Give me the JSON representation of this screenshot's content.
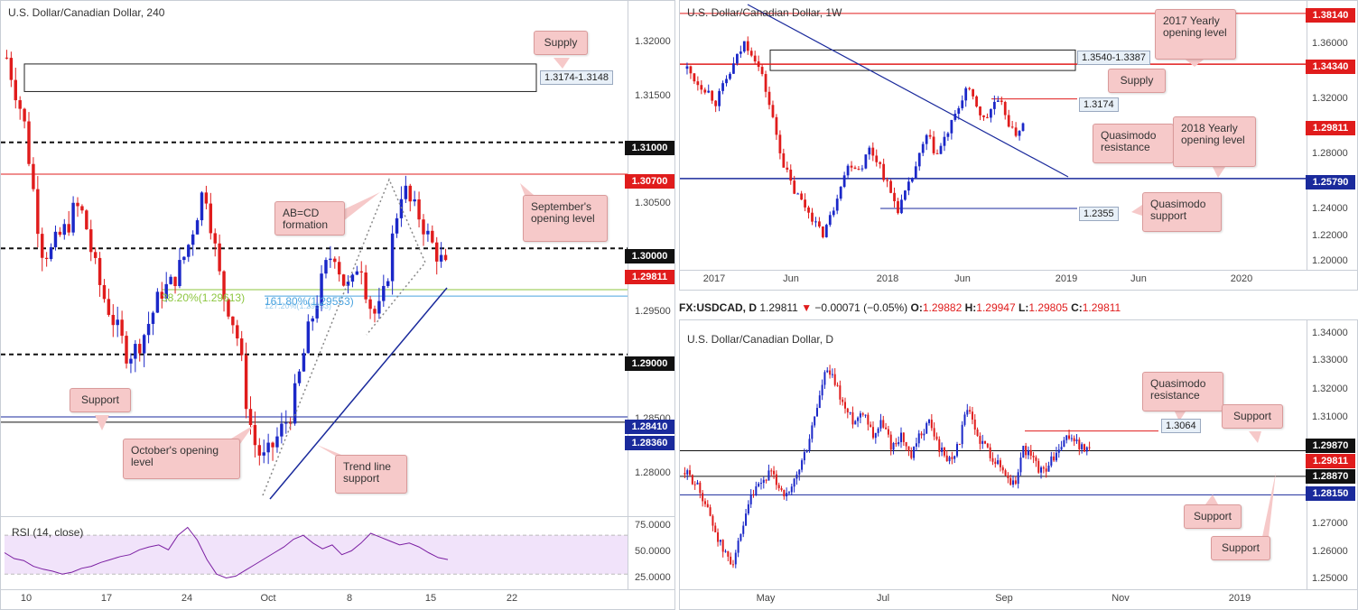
{
  "colors": {
    "up": "#1b28c8",
    "down": "#e01c1c",
    "level_red": "#e01c1c",
    "level_blue": "#1a2a9c",
    "black": "#111111",
    "fib_green": "#8cc63f",
    "fib_blue": "#4aa3df",
    "rsi_line": "#7b1fa2",
    "rsi_band": "#f1e3fa",
    "callout_bg": "#f6c9c9"
  },
  "h4": {
    "title": "U.S. Dollar/Canadian Dollar, 240",
    "price_ticks": [
      "1.32000",
      "1.31500",
      "1.31000",
      "1.30700",
      "1.30500",
      "1.30000",
      "1.29811",
      "1.29500",
      "1.29000",
      "1.28500",
      "1.28410",
      "1.28360",
      "1.28000"
    ],
    "date_ticks": [
      "10",
      "17",
      "24",
      "Oct",
      "8",
      "15",
      "22"
    ],
    "levels": {
      "l13100": "1.31000",
      "l13070": "1.30700",
      "l13000": "1.30000",
      "last": "1.29811",
      "l12900": "1.29000",
      "l12841": "1.28410",
      "l12836": "1.28360"
    },
    "supply_box_label": "1.3174-1.3148",
    "fib_382": "38.20%(1.29613)",
    "fib_1618": "161.80%(1.29553)",
    "fib_1272": "127.20%(1.29553)",
    "callouts": {
      "supply": "Supply",
      "september": "September's opening level",
      "abcd": "AB=CD formation",
      "support": "Support",
      "october": "October's opening level",
      "trend": "Trend line support"
    },
    "rsi": {
      "label": "RSI (14, close)",
      "ticks": [
        "75.0000",
        "50.0000",
        "25.0000"
      ]
    }
  },
  "weekly": {
    "title": "U.S. Dollar/Canadian Dollar, 1W",
    "price_ticks": [
      "1.38140",
      "1.36000",
      "1.34340",
      "1.32000",
      "1.29811",
      "1.28000",
      "1.25790",
      "1.24000",
      "1.22000",
      "1.20000"
    ],
    "date_ticks": [
      "2017",
      "Jun",
      "2018",
      "Jun",
      "2019",
      "Jun",
      "2020"
    ],
    "levels": {
      "l13814": "1.38140",
      "l13434": "1.34340",
      "last": "1.29811",
      "l12579": "1.25790"
    },
    "box_label": "1.3540-1.3387",
    "qm_label": "1.3174",
    "qs_label": "1.2355",
    "callouts": {
      "yearly2017": "2017 Yearly opening level",
      "supply": "Supply",
      "qm_res": "Quasimodo resistance",
      "yearly2018": "2018 Yearly opening level",
      "qm_sup": "Quasimodo support"
    }
  },
  "daily": {
    "infobar": {
      "symbol": "FX:USDCAD, D",
      "price": "1.29811",
      "arrow": "▼",
      "change": "−0.00071 (−0.05%)",
      "o_label": "O:",
      "o": "1.29882",
      "h_label": "H:",
      "h": "1.29947",
      "l_label": "L:",
      "l": "1.29805",
      "c_label": "C:",
      "c": "1.29811"
    },
    "title": "U.S. Dollar/Canadian Dollar, D",
    "price_ticks": [
      "1.34000",
      "1.33000",
      "1.32000",
      "1.31000",
      "1.29870",
      "1.29811",
      "1.28870",
      "1.28150",
      "1.27000",
      "1.26000",
      "1.25000"
    ],
    "date_ticks": [
      "May",
      "Jul",
      "Sep",
      "Nov",
      "2019"
    ],
    "levels": {
      "l12987": "1.29870",
      "last": "1.29811",
      "l12887": "1.28870",
      "l12815": "1.28150"
    },
    "qm_label": "1.3064",
    "callouts": {
      "qm_res": "Quasimodo resistance",
      "support1": "Support",
      "support2": "Support",
      "support3": "Support"
    }
  },
  "chart_data": [
    {
      "type": "candlestick",
      "title": "U.S. Dollar/Canadian Dollar, 240",
      "x_ticks": [
        "10",
        "17",
        "24",
        "Oct",
        "8",
        "15",
        "22"
      ],
      "ylim": [
        1.2755,
        1.3225
      ],
      "levels": [
        1.31,
        1.307,
        1.3,
        1.29,
        1.2841,
        1.2836
      ],
      "supply_zone": [
        1.3148,
        1.3174
      ],
      "last": 1.29811,
      "close_path": [
        1.318,
        1.315,
        1.312,
        1.306,
        1.3,
        1.2995,
        1.301,
        1.302,
        1.304,
        1.303,
        1.299,
        1.296,
        1.294,
        1.292,
        1.29,
        1.2905,
        1.292,
        1.294,
        1.296,
        1.2965,
        1.298,
        1.3,
        1.303,
        1.306,
        1.301,
        1.296,
        1.294,
        1.291,
        1.2845,
        1.281,
        1.28,
        1.2815,
        1.283,
        1.2845,
        1.288,
        1.292,
        1.295,
        1.298,
        1.3,
        1.297,
        1.296,
        1.2995,
        1.295,
        1.2935,
        1.296,
        1.302,
        1.306,
        1.304,
        1.303,
        1.301,
        1.2995,
        1.2981
      ]
    },
    {
      "type": "candlestick",
      "title": "U.S. Dollar/Canadian Dollar, 1W",
      "x_ticks": [
        "2017",
        "Jun",
        "2018",
        "Jun",
        "2019",
        "Jun",
        "2020"
      ],
      "ylim": [
        1.195,
        1.384
      ],
      "levels": [
        1.3814,
        1.3434,
        1.2579,
        1.2355,
        1.3174
      ],
      "supply_zone": [
        1.3387,
        1.354
      ],
      "last": 1.29811,
      "close_path": [
        1.34,
        1.33,
        1.325,
        1.315,
        1.33,
        1.345,
        1.36,
        1.35,
        1.33,
        1.3,
        1.27,
        1.25,
        1.24,
        1.23,
        1.215,
        1.23,
        1.255,
        1.27,
        1.265,
        1.28,
        1.27,
        1.25,
        1.235,
        1.25,
        1.27,
        1.29,
        1.275,
        1.29,
        1.305,
        1.325,
        1.315,
        1.3,
        1.315,
        1.31,
        1.29,
        1.298
      ]
    },
    {
      "type": "candlestick",
      "title": "U.S. Dollar/Canadian Dollar, D",
      "x_ticks": [
        "May",
        "Jul",
        "Sep",
        "Nov",
        "2019"
      ],
      "ylim": [
        1.2475,
        1.3425
      ],
      "levels": [
        1.3064,
        1.2987,
        1.2887,
        1.2815
      ],
      "last": 1.29811,
      "close_path": [
        1.29,
        1.287,
        1.28,
        1.27,
        1.26,
        1.255,
        1.265,
        1.28,
        1.285,
        1.29,
        1.285,
        1.28,
        1.29,
        1.3,
        1.315,
        1.33,
        1.325,
        1.315,
        1.31,
        1.315,
        1.305,
        1.31,
        1.3,
        1.305,
        1.295,
        1.305,
        1.31,
        1.3,
        1.295,
        1.3,
        1.315,
        1.305,
        1.3,
        1.295,
        1.29,
        1.285,
        1.3,
        1.295,
        1.29,
        1.295,
        1.3,
        1.305,
        1.3,
        1.2981
      ]
    },
    {
      "type": "line",
      "title": "RSI (14, close)",
      "ylim": [
        20,
        85
      ],
      "bands": [
        30,
        70
      ],
      "values": [
        52,
        46,
        44,
        38,
        35,
        33,
        30,
        32,
        36,
        38,
        42,
        45,
        48,
        50,
        55,
        58,
        60,
        55,
        70,
        78,
        65,
        45,
        30,
        26,
        28,
        34,
        40,
        46,
        52,
        58,
        66,
        70,
        62,
        56,
        60,
        50,
        54,
        62,
        72,
        68,
        64,
        60,
        62,
        58,
        52,
        47,
        45
      ]
    }
  ]
}
